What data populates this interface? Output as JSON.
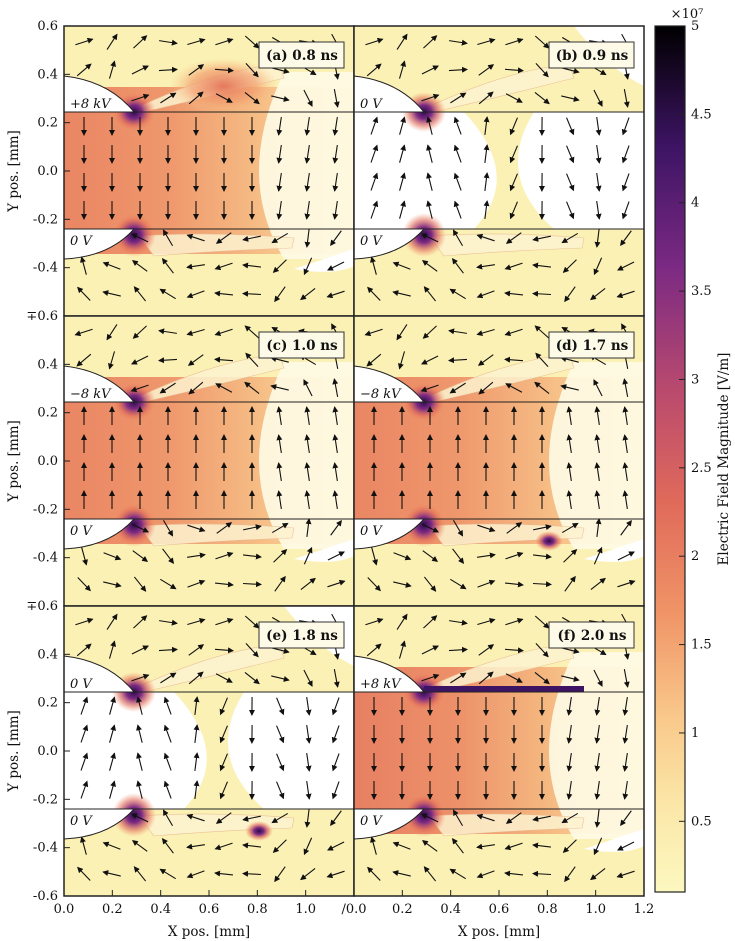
{
  "chart_data": {
    "type": "heatmap",
    "x_axis": {
      "label": "X pos. [mm]",
      "range": [
        0.0,
        1.2
      ],
      "ticks": [
        "0.0",
        "0.2",
        "0.4",
        "0.6",
        "0.8",
        "1.0",
        "1.2"
      ],
      "ticks_right_column": [
        "/0.0",
        "0.2",
        "0.4",
        "0.6",
        "0.8",
        "1.0",
        "1.2"
      ]
    },
    "y_axis": {
      "label": "Y pos. [mm]",
      "range": [
        -0.6,
        0.6
      ],
      "ticks": [
        "0.6",
        "0.4",
        "0.2",
        "0.0",
        "-0.2",
        "-0.4",
        "-0.6"
      ],
      "shared_boundary_tick": "∓0.6"
    },
    "colorbar": {
      "label": "Electric Field Magnitude [V/m]",
      "multiplier": "×10⁷",
      "range": [
        0.1,
        5
      ],
      "ticks": [
        "5",
        "4.5",
        "4",
        "3.5",
        "3",
        "2.5",
        "2",
        "1.5",
        "1",
        "0.5"
      ],
      "colors": [
        "#fcf8c0",
        "#f9c98b",
        "#f09567",
        "#e06a5a",
        "#b94a6e",
        "#7c2a83",
        "#3d1464",
        "#000000"
      ]
    },
    "panels": [
      {
        "label": "(a) 0.8 ns",
        "time_ns": 0.8,
        "top_electrode": "+8 kV",
        "bottom_electrode": "0 V",
        "gap_field": 1.5,
        "gap_direction": "down"
      },
      {
        "label": "(b) 0.9 ns",
        "time_ns": 0.9,
        "top_electrode": "0 V",
        "bottom_electrode": "0 V",
        "gap_field": 0.4,
        "gap_direction": "mixed"
      },
      {
        "label": "(c) 1.0 ns",
        "time_ns": 1.0,
        "top_electrode": "−8 kV",
        "bottom_electrode": "0 V",
        "gap_field": 1.5,
        "gap_direction": "up"
      },
      {
        "label": "(d) 1.7 ns",
        "time_ns": 1.7,
        "top_electrode": "−8 kV",
        "bottom_electrode": "0 V",
        "gap_field": 1.5,
        "gap_direction": "up"
      },
      {
        "label": "(e) 1.8 ns",
        "time_ns": 1.8,
        "top_electrode": "0 V",
        "bottom_electrode": "0 V",
        "gap_field": 0.4,
        "gap_direction": "mixed"
      },
      {
        "label": "(f) 2.0 ns",
        "time_ns": 2.0,
        "top_electrode": "+8 kV",
        "bottom_electrode": "0 V",
        "gap_field": 1.6,
        "gap_direction": "down"
      }
    ]
  },
  "colors": {
    "frame": "#222222",
    "electrode": "#ffffff"
  }
}
